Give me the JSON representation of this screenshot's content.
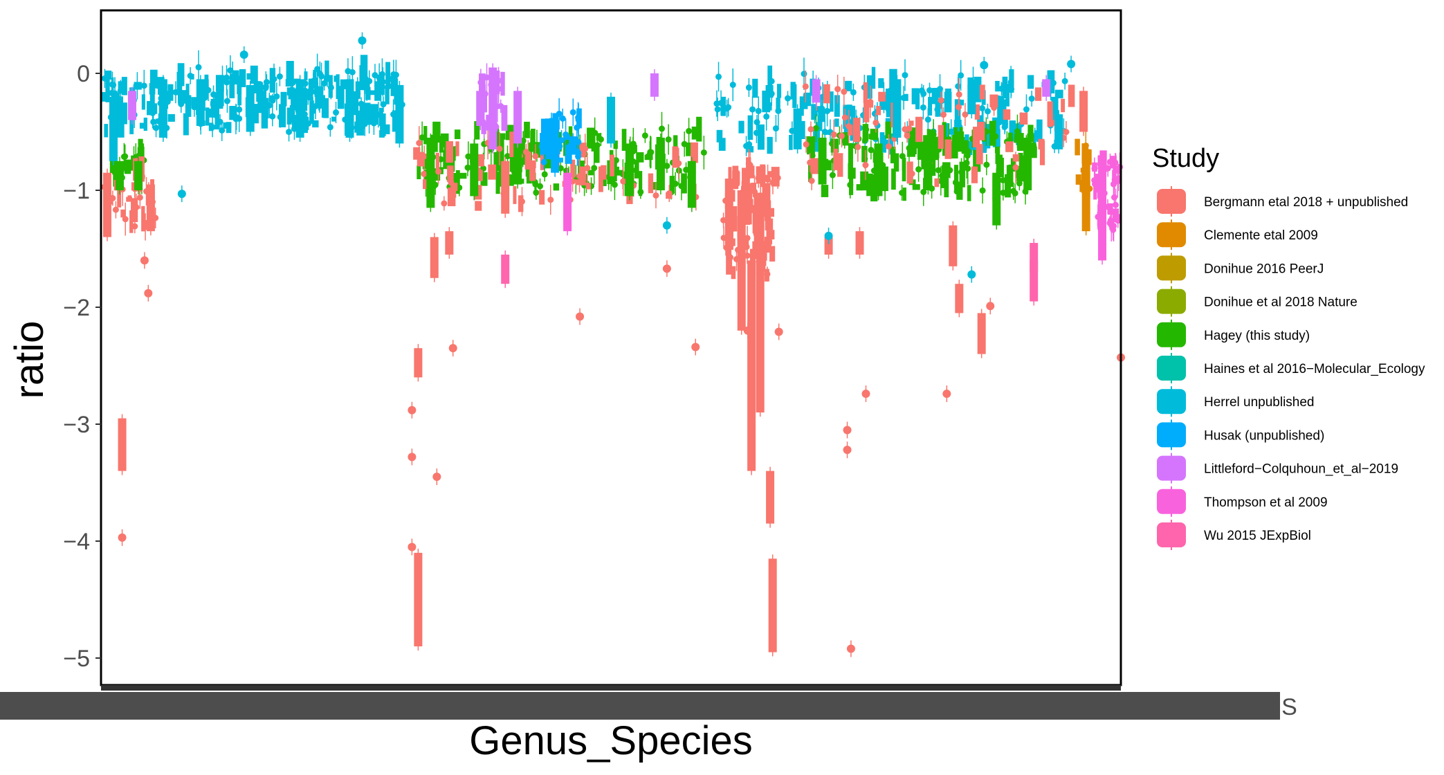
{
  "chart_data": {
    "type": "box",
    "title": "",
    "xlabel": "Genus_Species",
    "ylabel": "ratio",
    "ylim": [
      -5.2,
      0.55
    ],
    "yticks": [
      0,
      -1,
      -2,
      -3,
      -4,
      -5
    ],
    "ytick_labels": [
      "0",
      "−1",
      "−2",
      "−3",
      "−4",
      "−5"
    ],
    "x_tick_labels_note": "Genus_Species category labels are drawn but overprinted and illegible",
    "x_tail_text": "SIS",
    "grid": false,
    "legend": {
      "title": "Study",
      "placement": "right"
    },
    "series": [
      {
        "name": "Bergmann etal 2018 + unpublished",
        "color": "#F8766D",
        "boxes": [
          {
            "x": 0.5,
            "low": -1.4,
            "high": -0.85
          },
          {
            "x": 1.7,
            "low": -3.4,
            "high": -2.95
          },
          {
            "x": 4.0,
            "low": -1.35,
            "high": -0.95
          },
          {
            "x": 25.5,
            "low": -4.9,
            "high": -4.1
          },
          {
            "x": 25.5,
            "low": -2.6,
            "high": -2.35
          },
          {
            "x": 26.8,
            "low": -1.75,
            "high": -1.4
          },
          {
            "x": 28.0,
            "low": -1.55,
            "high": -1.35
          },
          {
            "x": 32.5,
            "low": -1.2,
            "high": -0.75
          },
          {
            "x": 50.5,
            "low": -1.5,
            "high": -0.9
          },
          {
            "x": 51.5,
            "low": -2.2,
            "high": -1.0
          },
          {
            "x": 52.3,
            "low": -3.4,
            "high": -1.6
          },
          {
            "x": 53.0,
            "low": -2.9,
            "high": -1.1
          },
          {
            "x": 53.8,
            "low": -3.85,
            "high": -3.4
          },
          {
            "x": 54.0,
            "low": -4.95,
            "high": -4.15
          },
          {
            "x": 58.5,
            "low": -1.55,
            "high": -1.4
          },
          {
            "x": 61.0,
            "low": -1.55,
            "high": -1.35
          },
          {
            "x": 68.5,
            "low": -1.65,
            "high": -1.3
          },
          {
            "x": 69.0,
            "low": -2.05,
            "high": -1.8
          },
          {
            "x": 70.8,
            "low": -2.4,
            "high": -2.05
          },
          {
            "x": 75.0,
            "low": -1.7,
            "high": -1.6
          },
          {
            "x": 79.0,
            "low": -0.5,
            "high": -0.15
          }
        ],
        "points": [
          {
            "x": 1.7,
            "y": -3.97
          },
          {
            "x": 3.5,
            "y": -1.6
          },
          {
            "x": 3.8,
            "y": -1.88
          },
          {
            "x": 25.0,
            "y": -2.88
          },
          {
            "x": 25.0,
            "y": -3.28
          },
          {
            "x": 25.0,
            "y": -4.05
          },
          {
            "x": 27.0,
            "y": -3.45
          },
          {
            "x": 28.3,
            "y": -2.35
          },
          {
            "x": 38.5,
            "y": -2.08
          },
          {
            "x": 45.5,
            "y": -1.67
          },
          {
            "x": 47.8,
            "y": -2.34
          },
          {
            "x": 52.0,
            "y": -2.2
          },
          {
            "x": 54.5,
            "y": -2.21
          },
          {
            "x": 60.0,
            "y": -3.05
          },
          {
            "x": 60.0,
            "y": -3.22
          },
          {
            "x": 60.3,
            "y": -4.92
          },
          {
            "x": 61.5,
            "y": -2.74
          },
          {
            "x": 68.0,
            "y": -2.74
          },
          {
            "x": 71.5,
            "y": -1.99
          },
          {
            "x": 82.0,
            "y": -2.43
          }
        ]
      },
      {
        "name": "Clemente etal 2009",
        "color": "#E18A00",
        "boxes": [
          {
            "x": 79.2,
            "low": -1.35,
            "high": -0.65
          }
        ]
      },
      {
        "name": "Donihue 2016 PeerJ",
        "color": "#BE9C00",
        "boxes": []
      },
      {
        "name": "Donihue et al 2018 Nature",
        "color": "#8CAB00",
        "boxes": []
      },
      {
        "name": "Hagey (this study)",
        "color": "#24B700",
        "boxes": [
          {
            "x": 1.5,
            "low": -1.0,
            "high": -0.75
          },
          {
            "x": 3.0,
            "low": -1.0,
            "high": -0.75
          },
          {
            "x": 26.5,
            "low": -1.15,
            "high": -0.55
          },
          {
            "x": 30.0,
            "low": -1.05,
            "high": -0.6
          },
          {
            "x": 33.5,
            "low": -0.95,
            "high": -0.55
          },
          {
            "x": 42.5,
            "low": -1.05,
            "high": -0.6
          },
          {
            "x": 45.0,
            "low": -1.0,
            "high": -0.55
          },
          {
            "x": 47.5,
            "low": -1.15,
            "high": -0.75
          },
          {
            "x": 58.0,
            "low": -0.95,
            "high": -0.55
          },
          {
            "x": 62.5,
            "low": -1.05,
            "high": -0.6
          },
          {
            "x": 66.5,
            "low": -1.0,
            "high": -0.6
          },
          {
            "x": 72.0,
            "low": -1.3,
            "high": -0.85
          },
          {
            "x": 74.5,
            "low": -1.0,
            "high": -0.55
          }
        ]
      },
      {
        "name": "Haines et al 2016−Molecular_Ecology",
        "color": "#00C1AA",
        "boxes": []
      },
      {
        "name": "Herrel unpublished",
        "color": "#00BBDA",
        "boxes": [
          {
            "x": 1.0,
            "low": -0.75,
            "high": -0.2
          },
          {
            "x": 5.0,
            "low": -0.55,
            "high": -0.05
          },
          {
            "x": 8.0,
            "low": -0.45,
            "high": -0.05
          },
          {
            "x": 12.0,
            "low": -0.5,
            "high": -0.1
          },
          {
            "x": 16.0,
            "low": -0.55,
            "high": -0.05
          },
          {
            "x": 20.0,
            "low": -0.55,
            "high": -0.05
          },
          {
            "x": 24.0,
            "low": -0.6,
            "high": -0.1
          },
          {
            "x": 41.0,
            "low": -0.6,
            "high": -0.2
          },
          {
            "x": 56.0,
            "low": -0.65,
            "high": -0.3
          },
          {
            "x": 64.0,
            "low": -0.55,
            "high": -0.05
          },
          {
            "x": 70.0,
            "low": -0.35,
            "high": -0.1
          },
          {
            "x": 77.0,
            "low": -0.65,
            "high": -0.35
          }
        ],
        "points": [
          {
            "x": 6.5,
            "y": -1.03
          },
          {
            "x": 11.5,
            "y": 0.16
          },
          {
            "x": 21.0,
            "y": 0.28
          },
          {
            "x": 45.5,
            "y": -1.3
          },
          {
            "x": 58.5,
            "y": -1.39
          },
          {
            "x": 70.0,
            "y": -1.72
          },
          {
            "x": 71.0,
            "y": 0.07
          },
          {
            "x": 78.0,
            "y": 0.08
          }
        ]
      },
      {
        "name": "Husak (unpublished)",
        "color": "#00ACFC",
        "boxes": [
          {
            "x": 36.5,
            "low": -0.85,
            "high": -0.4
          }
        ]
      },
      {
        "name": "Littleford−Colquhoun_et_al−2019",
        "color": "#D575FE",
        "boxes": [
          {
            "x": 2.5,
            "low": -0.4,
            "high": -0.15
          },
          {
            "x": 30.5,
            "low": -0.45,
            "high": -0.15
          },
          {
            "x": 31.5,
            "low": -0.65,
            "high": 0.05
          },
          {
            "x": 33.5,
            "low": -0.6,
            "high": -0.15
          },
          {
            "x": 44.5,
            "low": -0.2,
            "high": 0.0
          },
          {
            "x": 57.5,
            "low": -0.25,
            "high": -0.05
          },
          {
            "x": 76.0,
            "low": -0.2,
            "high": -0.05
          }
        ]
      },
      {
        "name": "Thompson et al 2009",
        "color": "#F962DD",
        "boxes": [
          {
            "x": 37.5,
            "low": -1.35,
            "high": -0.85
          },
          {
            "x": 80.5,
            "low": -1.6,
            "high": -0.7
          }
        ]
      },
      {
        "name": "Wu 2015 JExpBiol",
        "color": "#FF65AC",
        "boxes": [
          {
            "x": 32.5,
            "low": -1.8,
            "high": -1.55
          },
          {
            "x": 75.0,
            "low": -1.95,
            "high": -1.45
          }
        ]
      }
    ]
  }
}
